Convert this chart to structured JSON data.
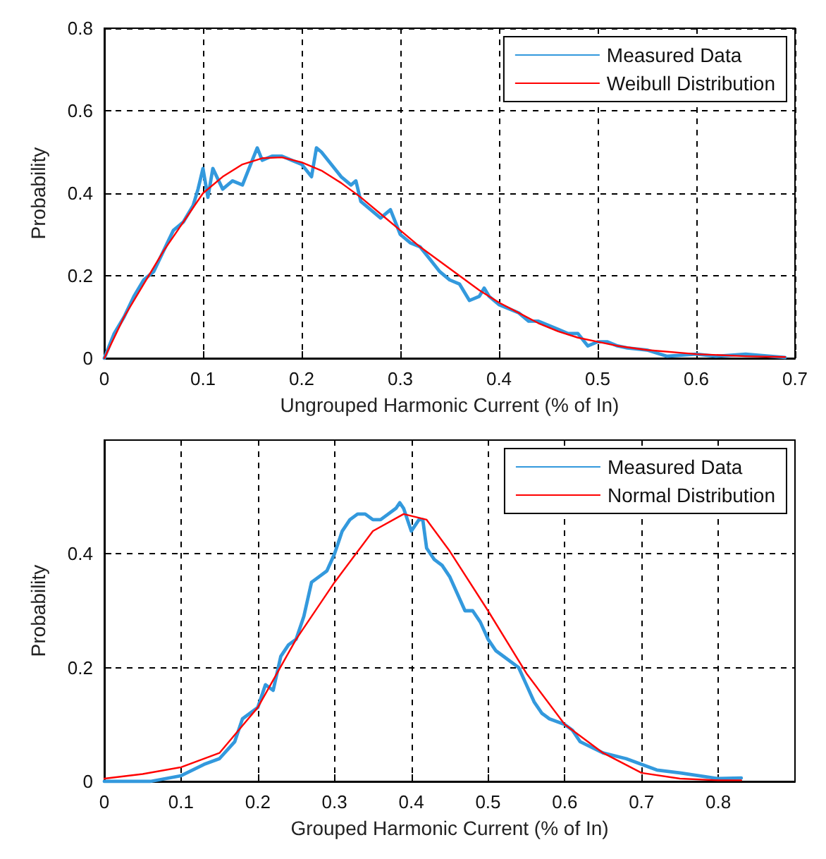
{
  "chart_data": [
    {
      "type": "line",
      "xlabel": "Ungrouped Harmonic Current (% of In)",
      "ylabel": "Probability",
      "xlim": [
        0,
        0.7
      ],
      "ylim": [
        0,
        0.8
      ],
      "xticks": [
        0,
        0.1,
        0.2,
        0.3,
        0.4,
        0.5,
        0.6,
        0.7
      ],
      "yticks": [
        0,
        0.2,
        0.4,
        0.6,
        0.8
      ],
      "grid": true,
      "legend": "top right",
      "marker": "none",
      "line_style": "solid",
      "series": [
        {
          "name": "Measured Data",
          "color": "#3399dd",
          "x": [
            0,
            0.01,
            0.02,
            0.03,
            0.04,
            0.05,
            0.06,
            0.07,
            0.08,
            0.09,
            0.095,
            0.1,
            0.105,
            0.11,
            0.12,
            0.13,
            0.14,
            0.15,
            0.155,
            0.16,
            0.17,
            0.18,
            0.19,
            0.2,
            0.21,
            0.215,
            0.22,
            0.23,
            0.24,
            0.25,
            0.255,
            0.26,
            0.27,
            0.28,
            0.29,
            0.3,
            0.31,
            0.32,
            0.33,
            0.34,
            0.35,
            0.36,
            0.37,
            0.38,
            0.385,
            0.39,
            0.4,
            0.41,
            0.42,
            0.43,
            0.44,
            0.45,
            0.46,
            0.47,
            0.48,
            0.49,
            0.5,
            0.51,
            0.52,
            0.53,
            0.55,
            0.57,
            0.6,
            0.62,
            0.65,
            0.69
          ],
          "values": [
            0,
            0.06,
            0.1,
            0.15,
            0.19,
            0.21,
            0.26,
            0.31,
            0.33,
            0.37,
            0.41,
            0.46,
            0.39,
            0.46,
            0.41,
            0.43,
            0.42,
            0.48,
            0.51,
            0.48,
            0.49,
            0.49,
            0.48,
            0.47,
            0.44,
            0.51,
            0.5,
            0.47,
            0.44,
            0.42,
            0.43,
            0.38,
            0.36,
            0.34,
            0.36,
            0.3,
            0.28,
            0.27,
            0.24,
            0.21,
            0.19,
            0.18,
            0.14,
            0.15,
            0.17,
            0.15,
            0.13,
            0.12,
            0.11,
            0.09,
            0.09,
            0.08,
            0.07,
            0.06,
            0.06,
            0.03,
            0.04,
            0.04,
            0.03,
            0.025,
            0.02,
            0.005,
            0.01,
            0.005,
            0.01,
            0.002
          ]
        },
        {
          "name": "Weibull Distribution",
          "color": "#ff0000",
          "x": [
            0,
            0.02,
            0.04,
            0.06,
            0.08,
            0.1,
            0.12,
            0.14,
            0.16,
            0.18,
            0.2,
            0.22,
            0.24,
            0.26,
            0.28,
            0.3,
            0.32,
            0.34,
            0.36,
            0.38,
            0.4,
            0.42,
            0.44,
            0.46,
            0.48,
            0.5,
            0.52,
            0.55,
            0.6,
            0.65,
            0.69
          ],
          "values": [
            0,
            0.1,
            0.18,
            0.26,
            0.33,
            0.4,
            0.44,
            0.47,
            0.485,
            0.487,
            0.475,
            0.455,
            0.425,
            0.39,
            0.35,
            0.31,
            0.27,
            0.235,
            0.2,
            0.165,
            0.135,
            0.11,
            0.085,
            0.065,
            0.05,
            0.04,
            0.03,
            0.02,
            0.01,
            0.005,
            0.003
          ]
        }
      ]
    },
    {
      "type": "line",
      "xlabel": "Grouped Harmonic Current (% of In)",
      "ylabel": "Probability",
      "xlim": [
        0,
        0.9
      ],
      "ylim": [
        0,
        0.6
      ],
      "xticks": [
        0,
        0.1,
        0.2,
        0.3,
        0.4,
        0.5,
        0.6,
        0.7,
        0.8
      ],
      "yticks": [
        0,
        0.2,
        0.4
      ],
      "grid": true,
      "legend": "top right",
      "marker": "none",
      "line_style": "solid",
      "series": [
        {
          "name": "Measured Data",
          "color": "#3399dd",
          "x": [
            0,
            0.06,
            0.1,
            0.13,
            0.15,
            0.17,
            0.18,
            0.19,
            0.2,
            0.21,
            0.22,
            0.23,
            0.24,
            0.25,
            0.26,
            0.27,
            0.28,
            0.29,
            0.3,
            0.31,
            0.32,
            0.33,
            0.34,
            0.35,
            0.36,
            0.37,
            0.38,
            0.385,
            0.39,
            0.4,
            0.41,
            0.415,
            0.42,
            0.43,
            0.44,
            0.45,
            0.46,
            0.47,
            0.48,
            0.49,
            0.5,
            0.51,
            0.52,
            0.54,
            0.55,
            0.56,
            0.57,
            0.58,
            0.6,
            0.61,
            0.62,
            0.65,
            0.68,
            0.7,
            0.72,
            0.75,
            0.8,
            0.83
          ],
          "values": [
            0,
            0,
            0.01,
            0.03,
            0.04,
            0.07,
            0.11,
            0.12,
            0.13,
            0.17,
            0.16,
            0.22,
            0.24,
            0.25,
            0.29,
            0.35,
            0.36,
            0.37,
            0.4,
            0.44,
            0.46,
            0.47,
            0.47,
            0.46,
            0.46,
            0.47,
            0.48,
            0.49,
            0.48,
            0.44,
            0.46,
            0.46,
            0.41,
            0.39,
            0.38,
            0.36,
            0.33,
            0.3,
            0.3,
            0.28,
            0.25,
            0.23,
            0.22,
            0.2,
            0.17,
            0.14,
            0.12,
            0.11,
            0.1,
            0.09,
            0.07,
            0.05,
            0.04,
            0.03,
            0.02,
            0.015,
            0.005,
            0.006
          ]
        },
        {
          "name": "Normal Distribution",
          "color": "#ff0000",
          "x": [
            0,
            0.05,
            0.1,
            0.15,
            0.2,
            0.25,
            0.3,
            0.35,
            0.39,
            0.42,
            0.45,
            0.5,
            0.55,
            0.6,
            0.65,
            0.7,
            0.75,
            0.8,
            0.83
          ],
          "values": [
            0.005,
            0.013,
            0.025,
            0.05,
            0.13,
            0.25,
            0.35,
            0.44,
            0.47,
            0.46,
            0.405,
            0.3,
            0.19,
            0.1,
            0.05,
            0.015,
            0.005,
            0.002,
            0.002
          ]
        }
      ]
    }
  ]
}
